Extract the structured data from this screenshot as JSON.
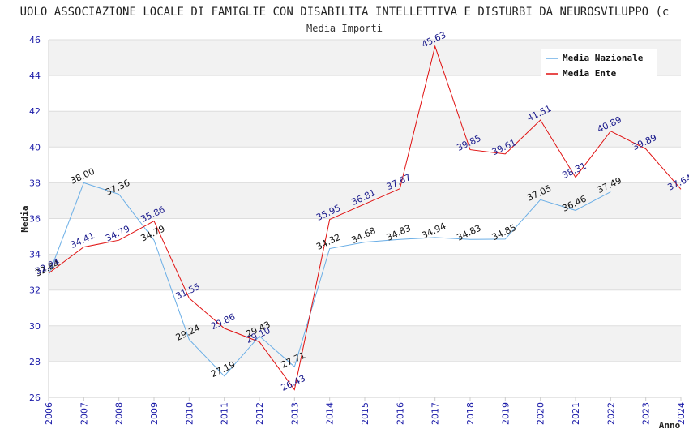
{
  "chart_data": {
    "type": "line",
    "title": "UOLO ASSOCIAZIONE LOCALE DI FAMIGLIE CON DISABILITA INTELLETTIVA E DISTURBI DA NEUROSVILUPPO (c",
    "subtitle": "Media Importi",
    "xlabel": "Anno",
    "ylabel": "Media",
    "ylim": [
      26,
      46
    ],
    "yticks": [
      "26",
      "28",
      "30",
      "32",
      "34",
      "36",
      "38",
      "40",
      "42",
      "44",
      "46"
    ],
    "categories": [
      "2006",
      "2007",
      "2008",
      "2009",
      "2010",
      "2011",
      "2012",
      "2013",
      "2014",
      "2015",
      "2016",
      "2017",
      "2018",
      "2019",
      "2020",
      "2021",
      "2022",
      "2023",
      "2024"
    ],
    "grid": true,
    "legend_position": "top-right",
    "series": [
      {
        "name": "Media Nazionale",
        "color": "#6aaee6",
        "label_color": "#111111",
        "values": [
          32.84,
          38.0,
          37.36,
          34.79,
          29.24,
          27.19,
          29.43,
          27.71,
          34.32,
          34.68,
          34.83,
          34.94,
          34.83,
          34.85,
          37.05,
          36.46,
          37.49,
          null,
          null
        ],
        "labels": [
          "32.84",
          "38.00",
          "37.36",
          "34.79",
          "29.24",
          "27.19",
          "29.43",
          "27.71",
          "34.32",
          "34.68",
          "34.83",
          "34.94",
          "34.83",
          "34.85",
          "37.05",
          "36.46",
          "37.49",
          "",
          ""
        ]
      },
      {
        "name": "Media Ente",
        "color": "#e01010",
        "label_color": "#1a1a8c",
        "values": [
          32.94,
          34.41,
          34.79,
          35.86,
          31.55,
          29.86,
          29.1,
          26.43,
          35.95,
          36.81,
          37.67,
          45.63,
          39.85,
          39.61,
          41.51,
          38.31,
          40.89,
          39.89,
          37.64
        ],
        "labels": [
          "32.94",
          "34.41",
          "34.79",
          "35.86",
          "31.55",
          "29.86",
          "29.10",
          "26.43",
          "35.95",
          "36.81",
          "37.67",
          "45.63",
          "39.85",
          "39.61",
          "41.51",
          "38.31",
          "40.89",
          "39.89",
          "37.64"
        ]
      }
    ]
  }
}
